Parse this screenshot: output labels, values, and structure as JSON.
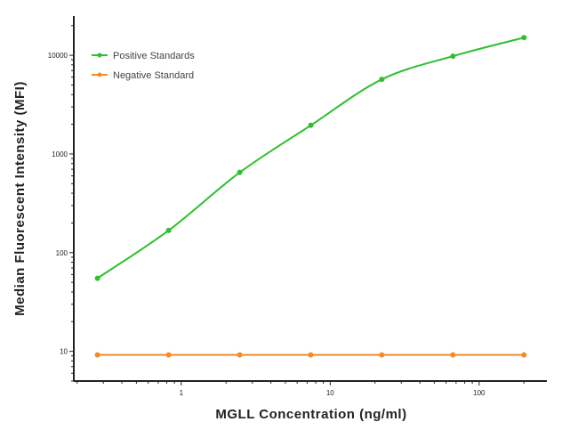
{
  "chart_data": {
    "type": "line",
    "title": "",
    "xlabel": "MGLL Concentration (ng/ml)",
    "ylabel": "Median  Fluorescent Intensity  (MFI)",
    "xscale": "log",
    "yscale": "log",
    "xlim": [
      0.19,
      285
    ],
    "ylim": [
      5,
      25000
    ],
    "x_ticks": [
      1,
      10,
      100
    ],
    "x_tick_labels": [
      "1",
      "10",
      "100"
    ],
    "y_ticks": [
      10,
      100,
      1000,
      10000
    ],
    "y_tick_labels": [
      "10",
      "100",
      "1000",
      "10000"
    ],
    "grid": false,
    "legend_position": "top-left",
    "series": [
      {
        "name": "Positive Standards",
        "color": "#2fbf2f",
        "marker": "circle",
        "fit_curve": true,
        "x": [
          0.274,
          0.823,
          2.47,
          7.41,
          22.2,
          66.7,
          200
        ],
        "y": [
          55,
          168,
          650,
          1950,
          5700,
          9800,
          15100
        ]
      },
      {
        "name": "Negative Standard",
        "color": "#f28c28",
        "marker": "circle",
        "fit_curve": false,
        "x": [
          0.274,
          0.823,
          2.47,
          7.41,
          22.2,
          66.7,
          200
        ],
        "y": [
          9.2,
          9.2,
          9.2,
          9.2,
          9.2,
          9.2,
          9.2
        ]
      }
    ]
  }
}
